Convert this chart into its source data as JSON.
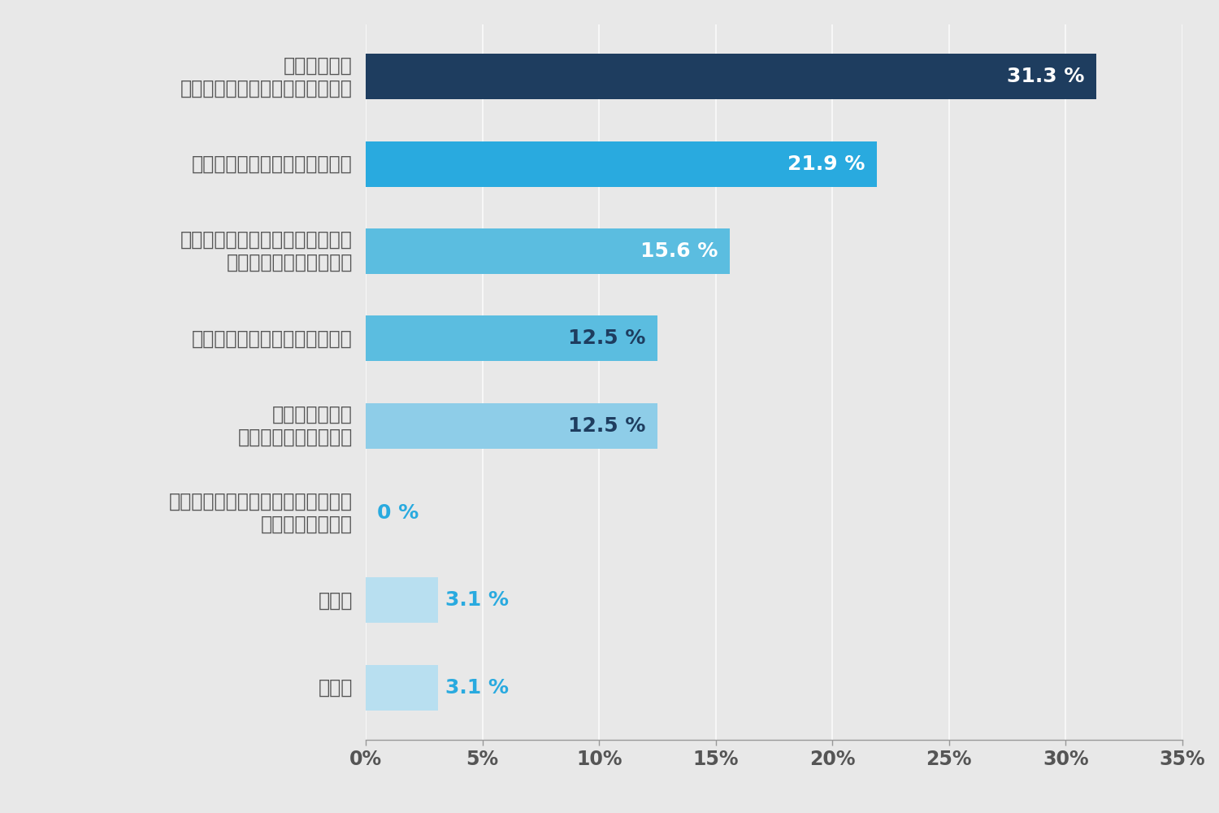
{
  "categories": [
    "生活者視点の\nものづくりができるようになった",
    "他工場とのつながりが得られた",
    "人や社会の役に立っていることが\n感じられるようになった",
    "以前に比べて技術力が上がった",
    "新たな収入源を\n得られるようになった",
    "後継者や新卒などの若手が加わり、\n未来を感じられた",
    "その他",
    "未回答"
  ],
  "values": [
    31.3,
    21.9,
    15.6,
    12.5,
    12.5,
    0,
    3.1,
    3.1
  ],
  "colors": [
    "#1e3d5f",
    "#29aadf",
    "#5bbde0",
    "#5bbde0",
    "#8ecde8",
    "#8ecde8",
    "#b8dff0",
    "#b8dff0"
  ],
  "label_colors": [
    "#ffffff",
    "#ffffff",
    "#ffffff",
    "#1e3d5f",
    "#1e3d5f",
    "#29aadf",
    "#29aadf",
    "#29aadf"
  ],
  "value_labels": [
    "31.3 %",
    "21.9 %",
    "15.6 %",
    "12.5 %",
    "12.5 %",
    "0 %",
    "3.1 %",
    "3.1 %"
  ],
  "xlim": [
    0,
    35
  ],
  "xticks": [
    0,
    5,
    10,
    15,
    20,
    25,
    30,
    35
  ],
  "xtick_labels": [
    "0%",
    "5%",
    "10%",
    "15%",
    "20%",
    "25%",
    "30%",
    "35%"
  ],
  "background_color": "#e8e8e8",
  "bar_height": 0.52,
  "tick_label_fontsize": 17,
  "value_label_fontsize": 18,
  "category_label_fontsize": 17
}
